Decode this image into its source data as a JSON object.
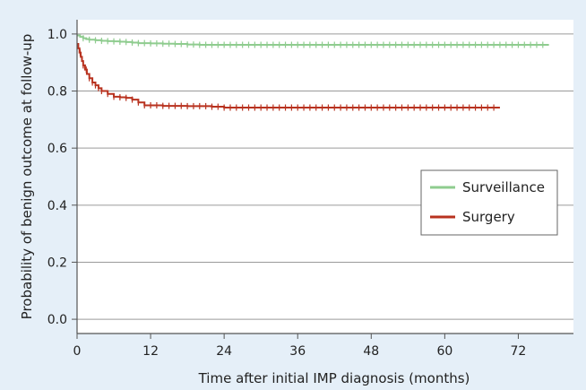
{
  "chart_data": {
    "type": "line",
    "xlabel": "Time after initial IMP diagnosis (months)",
    "ylabel": "Probability of benign outcome at follow-up",
    "xlim": [
      0,
      81
    ],
    "ylim": [
      -0.05,
      1.05
    ],
    "xticks": [
      0,
      12,
      24,
      36,
      48,
      60,
      72
    ],
    "yticks": [
      0.0,
      0.2,
      0.4,
      0.6,
      0.8,
      1.0
    ],
    "ytick_labels": [
      "0.0",
      "0.2",
      "0.4",
      "0.6",
      "0.8",
      "1.0"
    ],
    "grid": "horizontal",
    "legend_position": "right",
    "series": [
      {
        "name": "Surveillance",
        "color": "#8fcc8f",
        "step": true,
        "x": [
          0,
          0.5,
          1,
          1.5,
          2,
          3,
          4,
          5,
          6,
          7,
          8,
          9,
          10,
          12,
          14,
          16,
          18,
          20,
          24,
          30,
          40,
          50,
          60,
          70,
          77
        ],
        "y": [
          0.995,
          0.99,
          0.985,
          0.982,
          0.98,
          0.978,
          0.976,
          0.975,
          0.974,
          0.973,
          0.972,
          0.97,
          0.968,
          0.967,
          0.966,
          0.965,
          0.963,
          0.962,
          0.962,
          0.962,
          0.962,
          0.962,
          0.962,
          0.962,
          0.962
        ],
        "censor_x": [
          1,
          2,
          3,
          4,
          5,
          6,
          7,
          8,
          9,
          10,
          11,
          12,
          13,
          14,
          15,
          16,
          17,
          18,
          19,
          20,
          21,
          22,
          23,
          24,
          25,
          26,
          27,
          28,
          29,
          30,
          31,
          32,
          33,
          34,
          35,
          36,
          37,
          38,
          39,
          40,
          41,
          42,
          43,
          44,
          45,
          46,
          47,
          48,
          49,
          50,
          51,
          52,
          53,
          54,
          55,
          56,
          57,
          58,
          59,
          60,
          61,
          62,
          63,
          64,
          65,
          66,
          67,
          68,
          69,
          70,
          71,
          72,
          73,
          74,
          75,
          76
        ]
      },
      {
        "name": "Surgery",
        "color": "#b8321f",
        "step": true,
        "x": [
          0,
          0.2,
          0.4,
          0.6,
          0.8,
          1.0,
          1.3,
          1.6,
          2.0,
          2.5,
          3.0,
          3.5,
          4.0,
          5.0,
          6.0,
          7.0,
          8.0,
          9.0,
          10.0,
          11.0,
          14.0,
          18.0,
          22.0,
          24.0,
          30.0,
          40.0,
          50.0,
          60.0,
          69.0
        ],
        "y": [
          0.965,
          0.95,
          0.935,
          0.92,
          0.905,
          0.89,
          0.875,
          0.86,
          0.845,
          0.83,
          0.82,
          0.81,
          0.8,
          0.79,
          0.78,
          0.778,
          0.776,
          0.77,
          0.76,
          0.75,
          0.748,
          0.747,
          0.745,
          0.742,
          0.742,
          0.742,
          0.742,
          0.742,
          0.742
        ],
        "censor_x": [
          0.5,
          1,
          1.5,
          2,
          2.5,
          3,
          3.5,
          4,
          5,
          6,
          7,
          8,
          9,
          10,
          11,
          12,
          13,
          14,
          15,
          16,
          17,
          18,
          19,
          20,
          21,
          22,
          23,
          24,
          25,
          26,
          27,
          28,
          29,
          30,
          31,
          32,
          33,
          34,
          35,
          36,
          37,
          38,
          39,
          40,
          41,
          42,
          43,
          44,
          45,
          46,
          47,
          48,
          49,
          50,
          51,
          52,
          53,
          54,
          55,
          56,
          57,
          58,
          59,
          60,
          61,
          62,
          63,
          64,
          65,
          66,
          67,
          68
        ]
      }
    ]
  }
}
